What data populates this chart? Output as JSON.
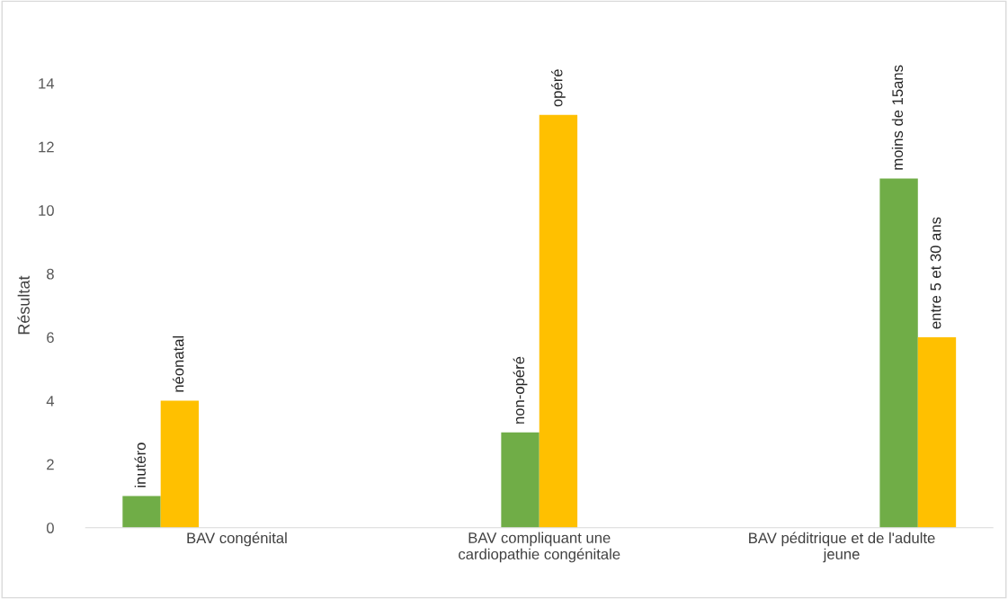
{
  "chart_data": {
    "type": "bar",
    "ylabel": "Résultat",
    "categories": [
      "BAV congénital",
      "BAV compliquant une\ncardiopathie congénitale",
      "BAV péditrique et de l'adulte\njeune"
    ],
    "series": [
      {
        "name": "inutéro",
        "color": "#70ad47",
        "values": [
          1,
          null,
          null
        ]
      },
      {
        "name": "néonatal",
        "color": "#ffc000",
        "values": [
          4,
          null,
          null
        ]
      },
      {
        "name": "non-opéré",
        "color": "#70ad47",
        "values": [
          null,
          3,
          null
        ]
      },
      {
        "name": "opéré",
        "color": "#ffc000",
        "values": [
          null,
          13,
          null
        ]
      },
      {
        "name": "moins de 15ans",
        "color": "#70ad47",
        "values": [
          null,
          null,
          11
        ]
      },
      {
        "name": "entre 5 et 30 ans",
        "color": "#ffc000",
        "values": [
          null,
          null,
          6
        ]
      }
    ],
    "ylim": [
      0,
      14
    ],
    "yticks": [
      0,
      2,
      4,
      6,
      8,
      10,
      12,
      14
    ],
    "grid": false,
    "legend": false
  }
}
